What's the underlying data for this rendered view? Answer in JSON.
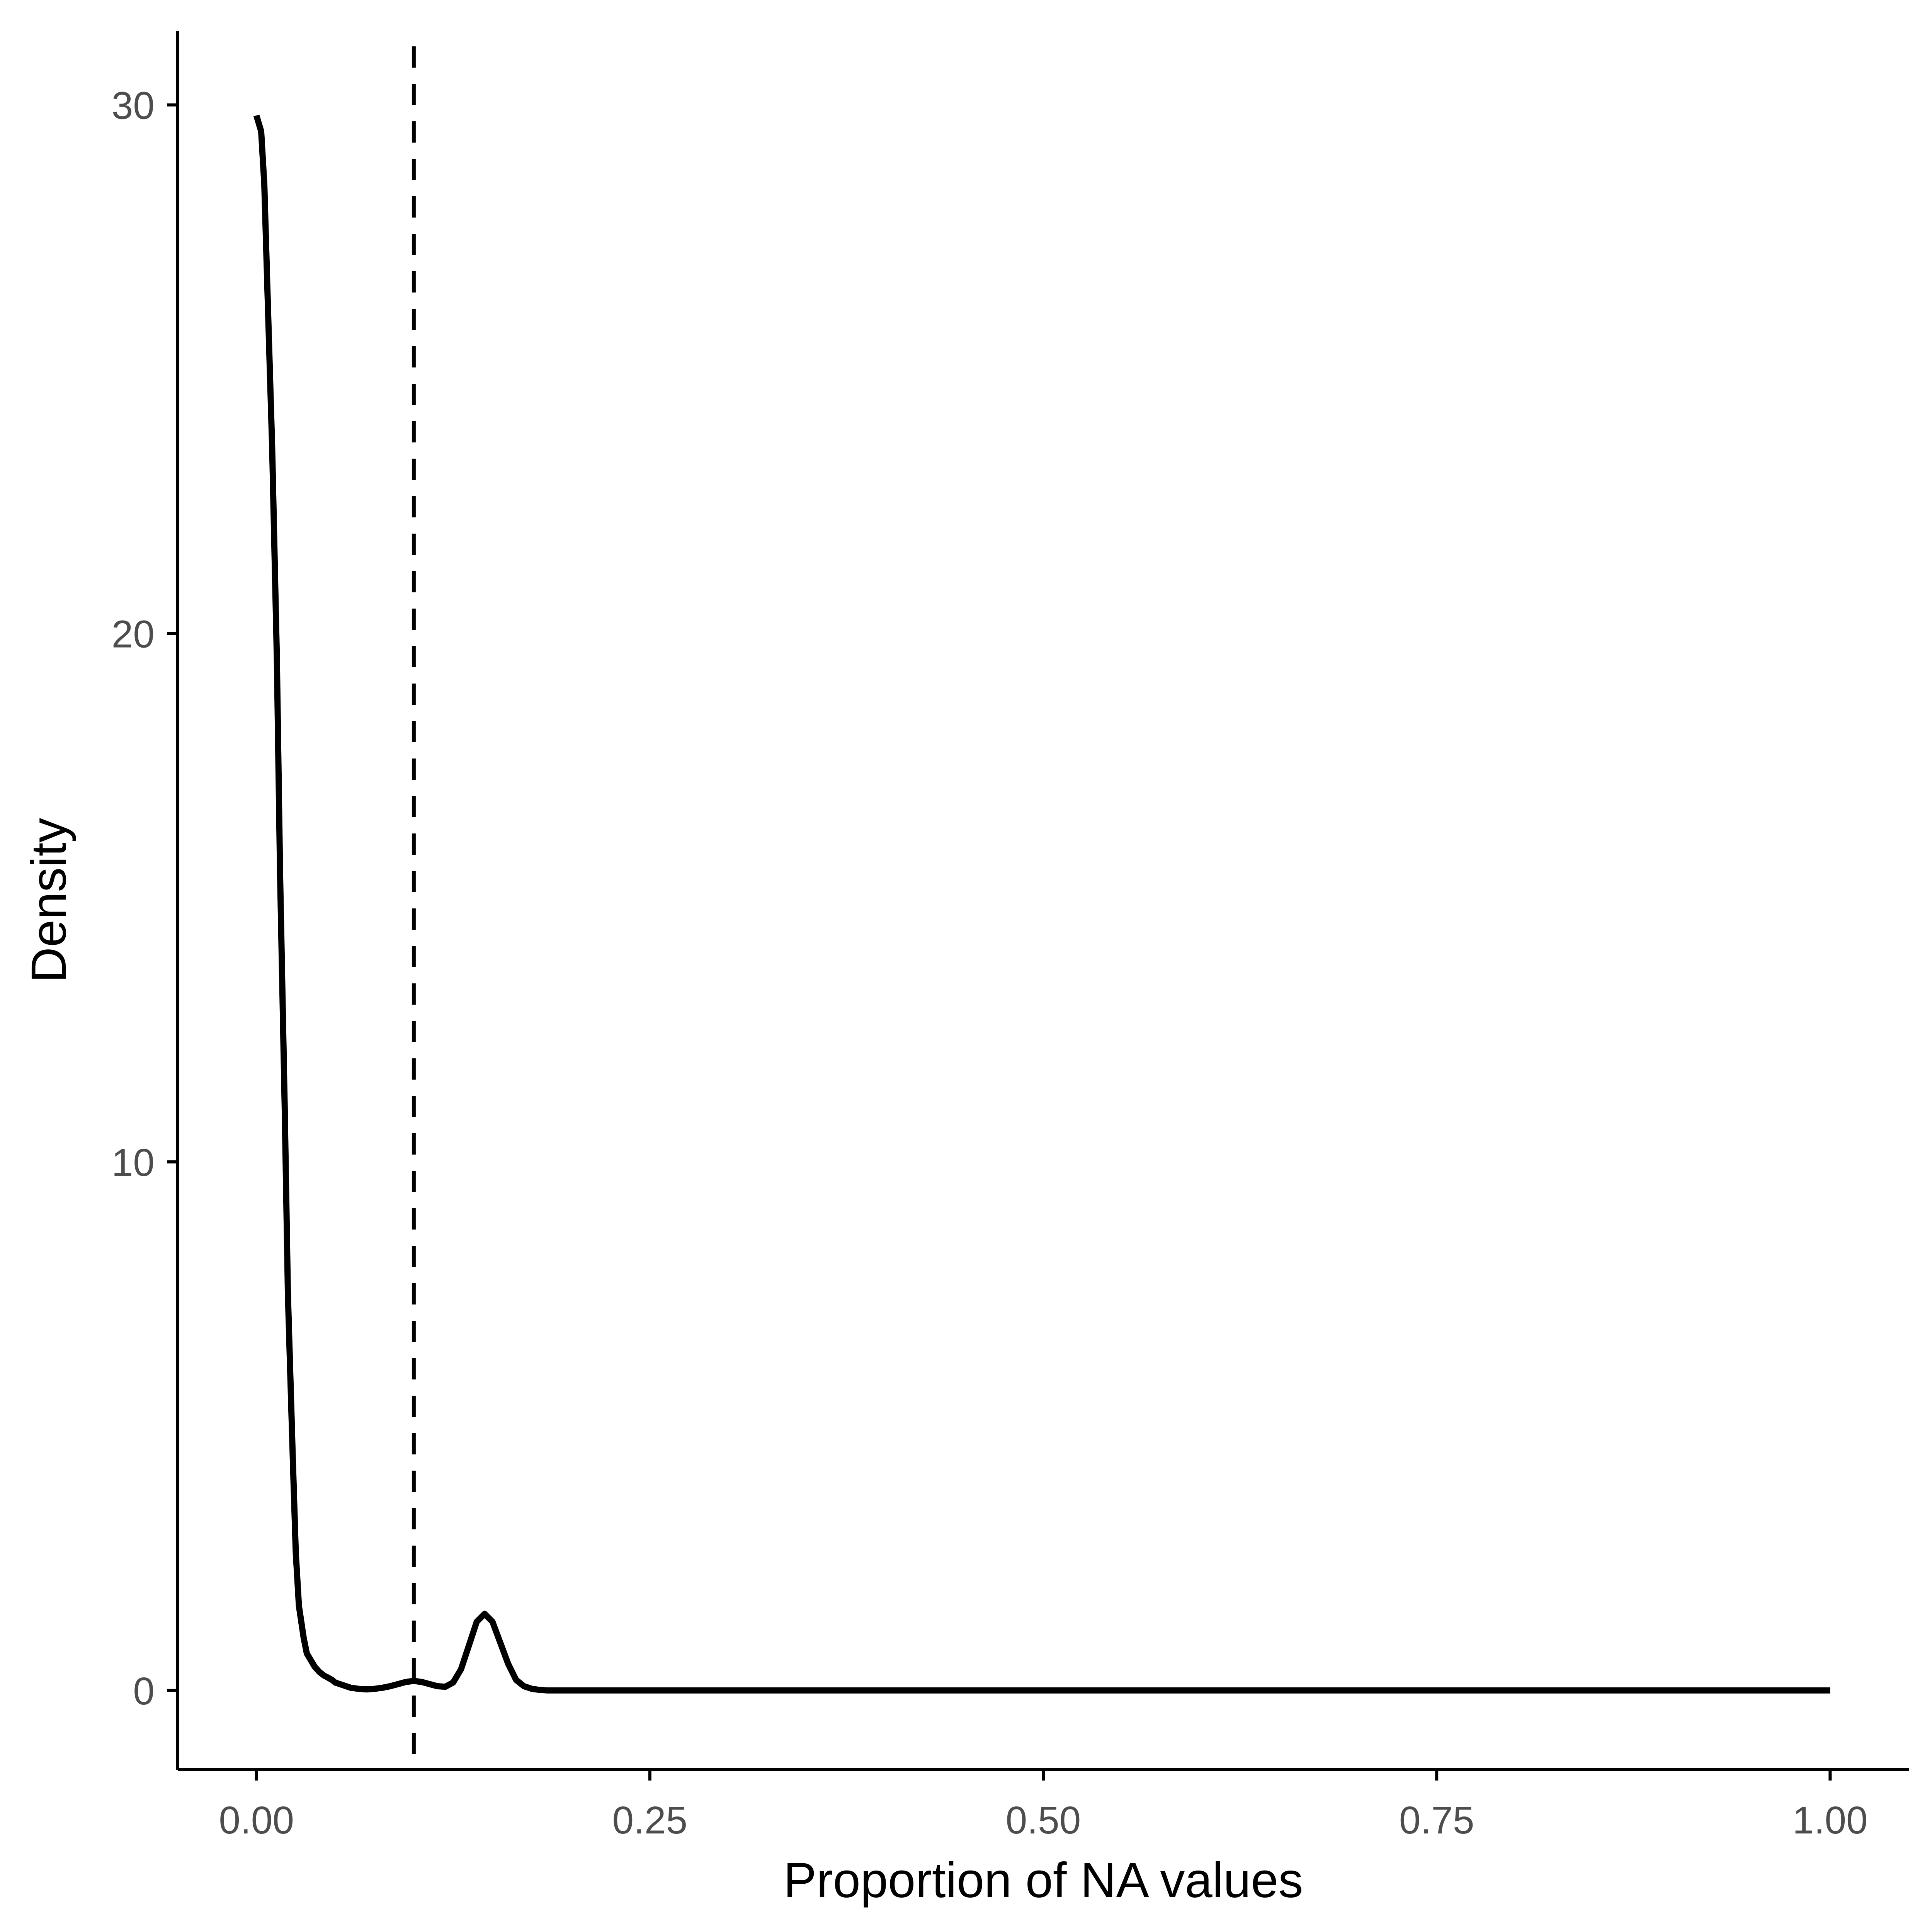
{
  "chart_data": {
    "type": "line",
    "title": "",
    "xlabel": "Proportion of NA values",
    "ylabel": "Density",
    "xlim": [
      -0.05,
      1.05
    ],
    "ylim": [
      -1.5,
      31.4
    ],
    "x_ticks": [
      {
        "value": 0.0,
        "label": "0.00"
      },
      {
        "value": 0.25,
        "label": "0.25"
      },
      {
        "value": 0.5,
        "label": "0.50"
      },
      {
        "value": 0.75,
        "label": "0.75"
      },
      {
        "value": 1.0,
        "label": "1.00"
      }
    ],
    "y_ticks": [
      {
        "value": 0,
        "label": "0"
      },
      {
        "value": 10,
        "label": "10"
      },
      {
        "value": 20,
        "label": "20"
      },
      {
        "value": 30,
        "label": "30"
      }
    ],
    "grid": false,
    "legend": "none",
    "series": [
      {
        "x": [
          0.0,
          0.003,
          0.005,
          0.007,
          0.01,
          0.013,
          0.015,
          0.018,
          0.02,
          0.023,
          0.025,
          0.027,
          0.03,
          0.032,
          0.035,
          0.037,
          0.04,
          0.043,
          0.045,
          0.048,
          0.05,
          0.055,
          0.06,
          0.065,
          0.07,
          0.075,
          0.08,
          0.085,
          0.09,
          0.095,
          0.1,
          0.105,
          0.11,
          0.115,
          0.12,
          0.125,
          0.13,
          0.135,
          0.14,
          0.145,
          0.15,
          0.155,
          0.16,
          0.165,
          0.17,
          0.175,
          0.18,
          0.185,
          0.19,
          0.195,
          0.2,
          0.205,
          0.21,
          0.215,
          0.22,
          0.23,
          0.25,
          0.3,
          0.4,
          0.5,
          0.6,
          0.7,
          0.8,
          0.9,
          1.0
        ],
        "y": [
          29.8,
          29.5,
          28.5,
          26.5,
          23.5,
          19.5,
          15.5,
          11.0,
          7.5,
          4.5,
          2.6,
          1.6,
          1.0,
          0.7,
          0.55,
          0.45,
          0.35,
          0.28,
          0.25,
          0.2,
          0.15,
          0.1,
          0.05,
          0.03,
          0.02,
          0.03,
          0.05,
          0.08,
          0.12,
          0.16,
          0.18,
          0.16,
          0.12,
          0.08,
          0.07,
          0.15,
          0.4,
          0.85,
          1.3,
          1.45,
          1.3,
          0.9,
          0.5,
          0.2,
          0.08,
          0.03,
          0.01,
          0.0,
          0.0,
          0.0,
          0.0,
          0.0,
          0.0,
          0.0,
          0.0,
          0.0,
          0.0,
          0.0,
          0.0,
          0.0,
          0.0,
          0.0,
          0.0,
          0.0,
          0.0
        ]
      }
    ],
    "annotations": [
      {
        "type": "vline",
        "x": 0.1,
        "style": "dashed"
      }
    ]
  }
}
